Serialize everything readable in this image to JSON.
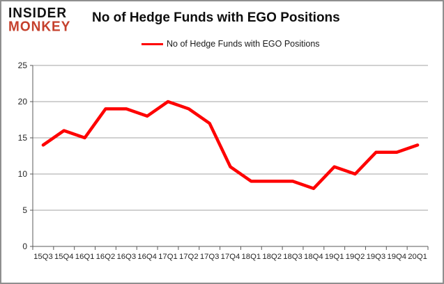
{
  "brand": {
    "line1": "INSIDER",
    "line2": "MONKEY",
    "color": "#c5402c"
  },
  "header": {
    "title": "No of Hedge Funds with EGO Positions"
  },
  "legend": {
    "label": "No of Hedge Funds with EGO Positions",
    "line_color": "#fe0000",
    "position": "top"
  },
  "chart_data": {
    "type": "line",
    "title": "No of Hedge Funds with EGO Positions",
    "series_name": "No of Hedge Funds with EGO Positions",
    "categories": [
      "15Q3",
      "15Q4",
      "16Q1",
      "16Q2",
      "16Q3",
      "16Q4",
      "17Q1",
      "17Q2",
      "17Q3",
      "17Q4",
      "18Q1",
      "18Q2",
      "18Q3",
      "18Q4",
      "19Q1",
      "19Q2",
      "19Q3",
      "19Q4",
      "20Q1"
    ],
    "values": [
      14,
      16,
      15,
      19,
      19,
      18,
      20,
      19,
      17,
      11,
      9,
      9,
      9,
      8,
      11,
      10,
      13,
      13,
      14
    ],
    "xlabel": "",
    "ylabel": "",
    "ylim": [
      0,
      25
    ],
    "yticks": [
      0,
      5,
      10,
      15,
      20,
      25
    ],
    "grid": true,
    "legend_position": "top",
    "colors": {
      "line": "#fe0000",
      "grid": "#a3a3a3",
      "axis": "#595959",
      "text": "#262626"
    }
  }
}
